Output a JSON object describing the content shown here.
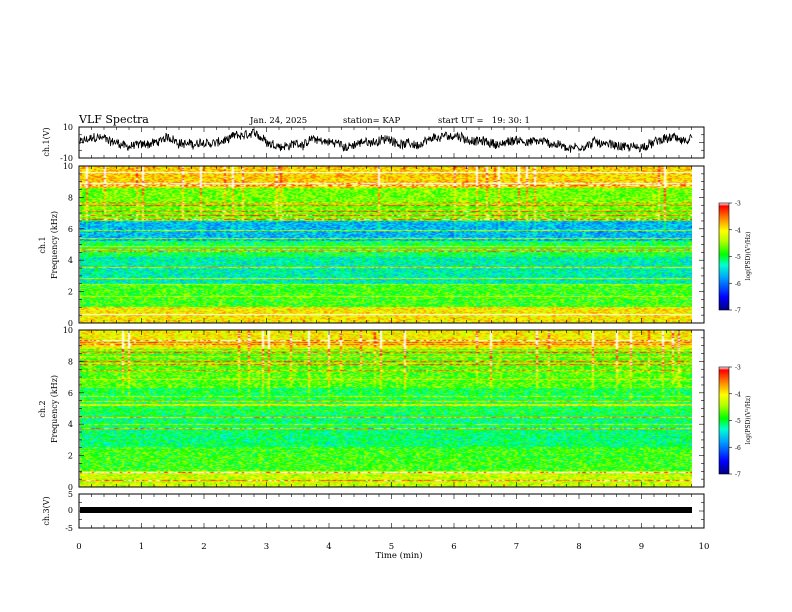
{
  "header": {
    "title": "VLF Spectra",
    "date": "Jan. 24, 2025",
    "station": "station= KAP",
    "start": "start UT =   19: 30: 1"
  },
  "chart_data": [
    {
      "type": "line",
      "name": "ch1-voltage",
      "ylabel": "ch.1(V)",
      "ylim": [
        -10,
        10
      ],
      "yticks": [
        "10",
        "-10"
      ],
      "xlim": [
        0,
        10
      ],
      "description": "noisy waveform roughly between -8 and 8 V"
    },
    {
      "type": "heatmap",
      "name": "ch1-spectrogram",
      "ylabel": "ch.1",
      "ylabel2": "Frequency (kHz)",
      "ylim": [
        0,
        10
      ],
      "yticks": [
        "0",
        "2",
        "4",
        "6",
        "8",
        "10"
      ],
      "xlim": [
        0,
        9.8
      ],
      "colorbar": {
        "label": "log(PSD)(V²/Hz)",
        "range": [
          -7,
          -3
        ],
        "ticks": [
          "-3",
          "-4",
          "-5",
          "-6",
          "-7"
        ]
      }
    },
    {
      "type": "heatmap",
      "name": "ch2-spectrogram",
      "ylabel": "ch.2",
      "ylabel2": "Frequency (kHz)",
      "ylim": [
        0,
        10
      ],
      "yticks": [
        "0",
        "2",
        "4",
        "6",
        "8",
        "10"
      ],
      "xlim": [
        0,
        9.8
      ],
      "colorbar": {
        "label": "log(PSD)(V²/Hz)",
        "range": [
          -7,
          -3
        ],
        "ticks": [
          "-3",
          "-4",
          "-5",
          "-6",
          "-7"
        ]
      }
    },
    {
      "type": "line",
      "name": "ch3-voltage",
      "ylabel": "ch.3(V)",
      "ylim": [
        -5,
        5
      ],
      "yticks": [
        "5",
        "0",
        "-5"
      ],
      "xlim": [
        0,
        10
      ],
      "description": "flat thick line near -1 V"
    }
  ],
  "xaxis": {
    "label": "Time (min)",
    "ticks": [
      "0",
      "1",
      "2",
      "3",
      "4",
      "5",
      "6",
      "7",
      "8",
      "9",
      "10"
    ]
  },
  "colors": {
    "scale": [
      "#000080",
      "#0000ff",
      "#00a0ff",
      "#00ffd0",
      "#00ff00",
      "#b0ff00",
      "#ffff00",
      "#ff8000",
      "#ff0000",
      "#ffffff"
    ]
  }
}
